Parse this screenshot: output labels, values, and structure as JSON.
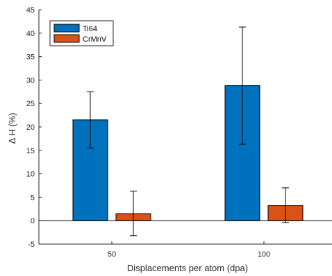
{
  "chart_data": {
    "type": "bar",
    "title": "",
    "xlabel": "Displacements per atom (dpa)",
    "ylabel": "Δ H (%)",
    "categories": [
      "50",
      "100"
    ],
    "ylim": [
      -5,
      45
    ],
    "yticks": [
      -5,
      0,
      5,
      10,
      15,
      20,
      25,
      30,
      35,
      40,
      45
    ],
    "grid": false,
    "legend_position": "top-left",
    "series": [
      {
        "name": "Ti64",
        "color": "#0072BD",
        "values": [
          21.5,
          28.8
        ],
        "error_low": [
          15.5,
          16.3
        ],
        "error_high": [
          27.5,
          41.3
        ]
      },
      {
        "name": "CrMnV",
        "color": "#D95319",
        "values": [
          1.5,
          3.2
        ],
        "error_low": [
          -3.2,
          -0.4
        ],
        "error_high": [
          6.3,
          7.0
        ]
      }
    ]
  }
}
